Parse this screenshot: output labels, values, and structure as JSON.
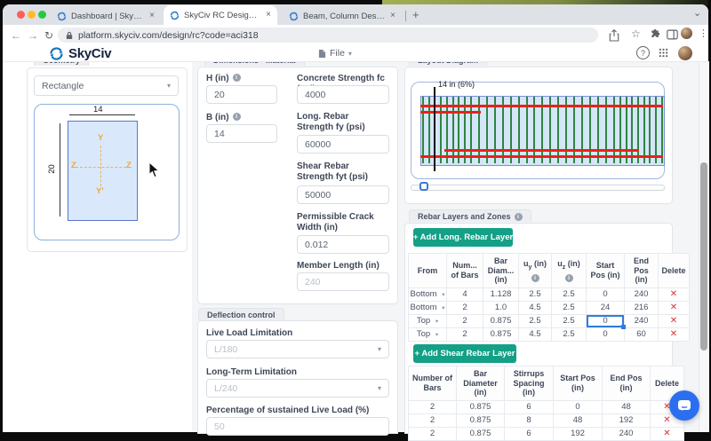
{
  "icons": {
    "close": "×",
    "plus": "+",
    "caret": "▾",
    "delete": "✕",
    "back": "←",
    "forward": "→",
    "reload": "↻",
    "overflow": "⋮",
    "star": "☆",
    "chevron_down": "⌄",
    "new_tab": "+",
    "lock": "lock-icon"
  },
  "browser": {
    "tabs": [
      {
        "label": "Dashboard | SkyCiv Platform",
        "active": false
      },
      {
        "label": "SkyCiv RC Design | SkyCiv Plat",
        "active": true
      },
      {
        "label": "Beam, Column Design – Stand…",
        "active": false
      }
    ],
    "url": "platform.skyciv.com/design/rc?code=aci318"
  },
  "header": {
    "brand": "SkyCiv",
    "file_menu": "File"
  },
  "geometry": {
    "tab": "Geometry",
    "shape": "Rectangle",
    "dim_width": "14",
    "dim_height": "20",
    "axis_y_top": "Y",
    "axis_y_bottom": "Y'",
    "axis_z_left": "Z",
    "axis_z_right": "Z"
  },
  "materials": {
    "tab": "Dimensions - Material",
    "h_label": "H (in)",
    "h_value": "20",
    "b_label": "B (in)",
    "b_value": "14",
    "fc_label": "Concrete Strength fc (psi)",
    "fc_value": "4000",
    "fy_label": "Long. Rebar Strength fy (psi)",
    "fy_value": "60000",
    "fyt_label": "Shear Rebar Strength fyt (psi)",
    "fyt_value": "50000",
    "crack_label": "Permissible Crack Width (in)",
    "crack_value": "0.012",
    "length_label": "Member Length (in)",
    "length_value": "240"
  },
  "deflection": {
    "tab": "Deflection control",
    "live_label": "Live Load Limitation",
    "live_value": "L/180",
    "longterm_label": "Long-Term Limitation",
    "longterm_value": "L/240",
    "sustained_label": "Percentage of sustained Live Load (%)",
    "sustained_value": "50"
  },
  "layout": {
    "tab": "Layout Diagram",
    "cursor_label": "14 in (6%)",
    "beam_length_in": 240,
    "section_depth_in": 20
  },
  "rebar": {
    "tab": "Rebar Layers and Zones",
    "add_long_label": "+ Add Long. Rebar Layer",
    "add_shear_label": "+ Add Shear Rebar Layer",
    "long_table": {
      "headers": [
        [
          "From"
        ],
        [
          "Num...",
          "of Bars"
        ],
        [
          "Bar",
          "Diam...",
          "(in)"
        ],
        [
          "u~y (in)",
          "[i]"
        ],
        [
          "u~z (in)",
          "[i]"
        ],
        [
          "Start",
          "Pos (in)"
        ],
        [
          "End Pos",
          "(in)"
        ],
        [
          "Delete"
        ]
      ],
      "rows": [
        {
          "from": "Bottom",
          "bars": "4",
          "dia": "1.128",
          "uy": "2.5",
          "uz": "2.5",
          "start": "0",
          "end": "240"
        },
        {
          "from": "Bottom",
          "bars": "2",
          "dia": "1.0",
          "uy": "4.5",
          "uz": "2.5",
          "start": "24",
          "end": "216"
        },
        {
          "from": "Top",
          "bars": "2",
          "dia": "0.875",
          "uy": "2.5",
          "uz": "2.5",
          "start": "0",
          "end": "240"
        },
        {
          "from": "Top",
          "bars": "2",
          "dia": "0.875",
          "uy": "4.5",
          "uz": "2.5",
          "start": "0",
          "end": "60"
        }
      ],
      "selected_cell": {
        "row": 2,
        "col": "start"
      }
    },
    "shear_table": {
      "headers": [
        [
          "Number of",
          "Bars"
        ],
        [
          "Bar",
          "Diameter",
          "(in)"
        ],
        [
          "Stirrups",
          "Spacing",
          "(in)"
        ],
        [
          "Start Pos",
          "(in)"
        ],
        [
          "End Pos",
          "(in)"
        ],
        [
          "Delete"
        ]
      ],
      "rows": [
        {
          "bars": "2",
          "dia": "0.875",
          "spacing": "6",
          "start": "0",
          "end": "48"
        },
        {
          "bars": "2",
          "dia": "0.875",
          "spacing": "8",
          "start": "48",
          "end": "192"
        },
        {
          "bars": "2",
          "dia": "0.875",
          "spacing": "6",
          "start": "192",
          "end": "240"
        }
      ]
    }
  }
}
